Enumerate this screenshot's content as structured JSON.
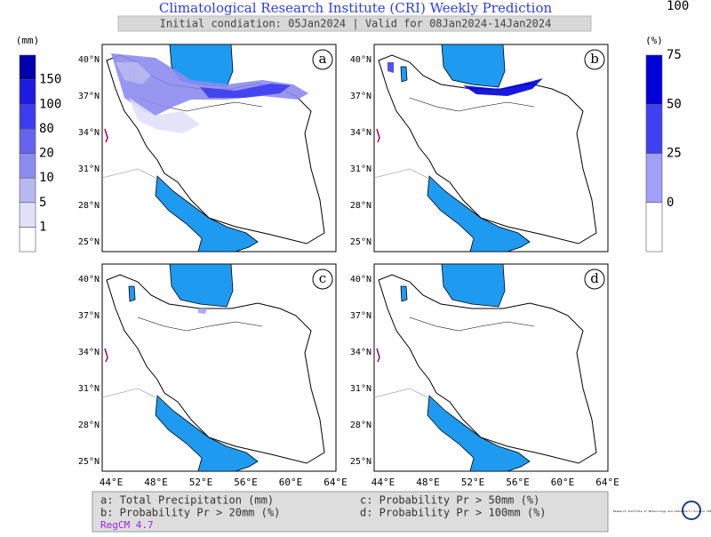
{
  "header": {
    "title": "Climatological Research Institute (CRI) Weekly Prediction",
    "subtitle": "Initial condiation: 05Jan2024 | Valid for 08Jan2024-14Jan2024"
  },
  "colorbar_left": {
    "unit": "(mm)",
    "labels": [
      1,
      5,
      10,
      20,
      80,
      100,
      150
    ],
    "colors": [
      "#ffffff",
      "#e0e0f8",
      "#b8b8f0",
      "#8c8cf0",
      "#6464f0",
      "#3c3cf0",
      "#1c1ce0",
      "#0000b0"
    ]
  },
  "colorbar_right": {
    "unit": "(%)",
    "labels": [
      0,
      25,
      50,
      75,
      100
    ],
    "colors": [
      "#ffffff",
      "#a0a0f8",
      "#4040f0",
      "#0000d8"
    ]
  },
  "panels": [
    "a",
    "b",
    "c",
    "d"
  ],
  "lat_labels": [
    "40°N",
    "37°N",
    "34°N",
    "31°N",
    "28°N",
    "25°N"
  ],
  "lon_labels": [
    "44°E",
    "48°E",
    "52°E",
    "56°E",
    "60°E",
    "64°E"
  ],
  "legend": {
    "items": [
      "a: Total Precipitation (mm)",
      "b: Probability Pr > 20mm (%)",
      "c: Probability Pr > 50mm (%)",
      "d: Probability Pr > 100mm (%)"
    ],
    "model": "RegCM 4.7"
  },
  "logo": "Research Institute of Meteorology and Atmospheric Science (RIMAS)"
}
